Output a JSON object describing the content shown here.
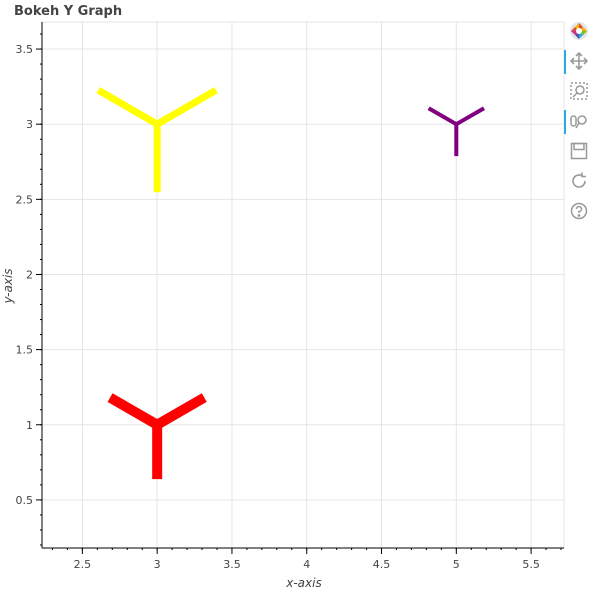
{
  "chart_data": {
    "type": "scatter",
    "marker": "y",
    "title": "Bokeh Y Graph",
    "xlabel": "x-axis",
    "ylabel": "y-axis",
    "xlim": [
      2.23,
      5.72
    ],
    "ylim": [
      0.18,
      3.68
    ],
    "xticks_major": [
      2.5,
      3,
      3.5,
      4,
      4.5,
      5,
      5.5
    ],
    "xtick_labels": [
      "2.5",
      "3",
      "3.5",
      "4",
      "4.5",
      "5",
      "5.5"
    ],
    "yticks_major": [
      0.5,
      1,
      1.5,
      2,
      2.5,
      3,
      3.5
    ],
    "ytick_labels": [
      "0.5",
      "1",
      "1.5",
      "2",
      "2.5",
      "3",
      "3.5"
    ],
    "grid": true,
    "points": [
      {
        "x": 3,
        "y": 3,
        "color": "#ffff00",
        "size": 1.0,
        "width": 7
      },
      {
        "x": 5,
        "y": 3,
        "color": "#800080",
        "size": 0.47,
        "width": 4
      },
      {
        "x": 3,
        "y": 1,
        "color": "#ff0000",
        "size": 0.8,
        "width": 10
      }
    ]
  },
  "toolbar": {
    "tools": [
      {
        "name": "bokeh-logo-icon",
        "active": false,
        "logo": true
      },
      {
        "name": "pan-tool-icon",
        "active": true
      },
      {
        "name": "box-zoom-tool-icon",
        "active": false
      },
      {
        "name": "wheel-zoom-tool-icon",
        "active": true
      },
      {
        "name": "save-tool-icon",
        "active": false
      },
      {
        "name": "reset-tool-icon",
        "active": false
      },
      {
        "name": "help-tool-icon",
        "active": false
      }
    ]
  }
}
